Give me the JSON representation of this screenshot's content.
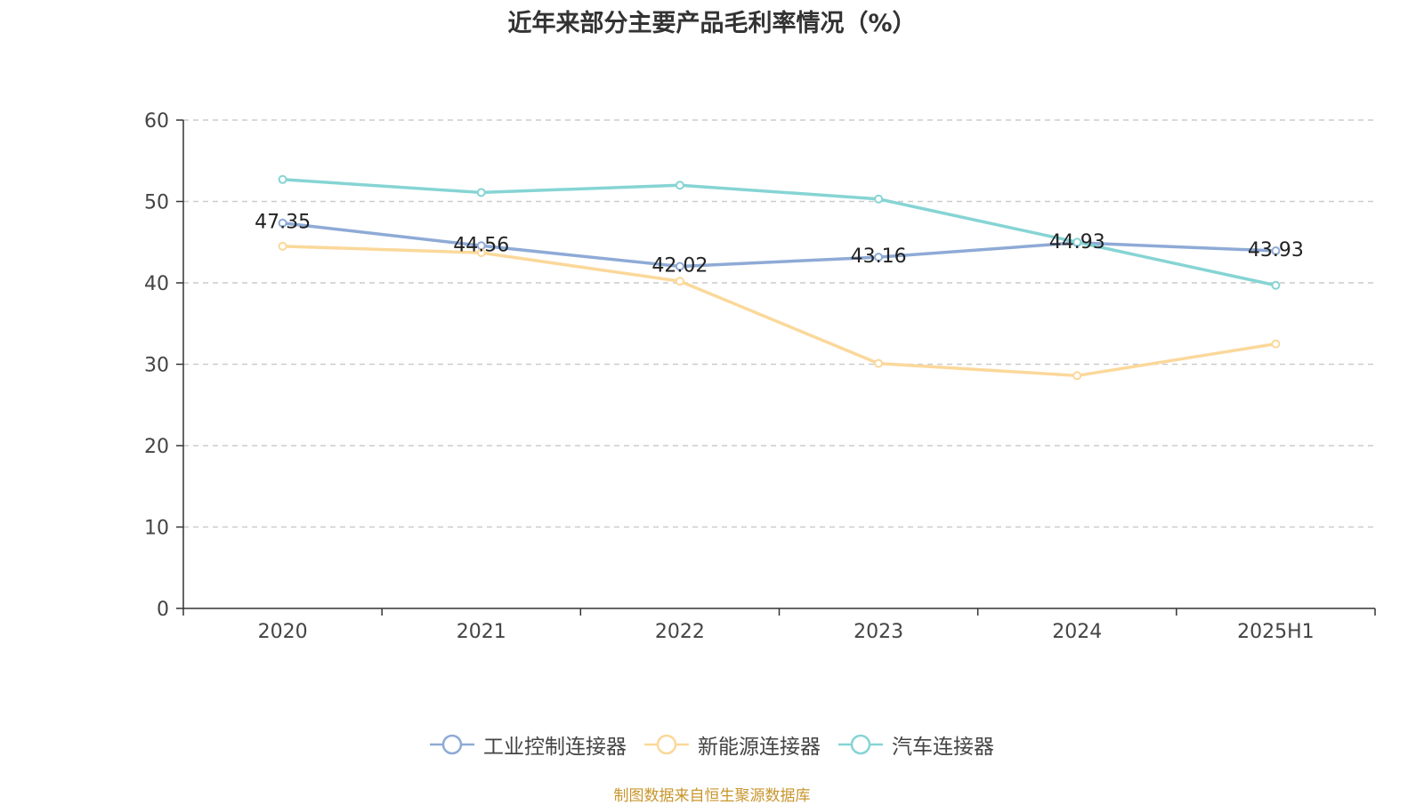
{
  "title": "近年来部分主要产品毛利率情况（%）",
  "source": "制图数据来自恒生聚源数据库",
  "chart_data": {
    "type": "line",
    "categories": [
      "2020",
      "2021",
      "2022",
      "2023",
      "2024",
      "2025H1"
    ],
    "ylim": [
      0,
      60
    ],
    "yticks": [
      0,
      10,
      20,
      30,
      40,
      50,
      60
    ],
    "grid": true,
    "legend_position": "bottom",
    "labeled_series": "工业控制连接器",
    "series": [
      {
        "name": "工业控制连接器",
        "color": "#8eaad6",
        "values": [
          47.35,
          44.56,
          42.02,
          43.16,
          44.93,
          43.93
        ],
        "labels": [
          "47.35",
          "44.56",
          "42.02",
          "43.16",
          "44.93",
          "43.93"
        ]
      },
      {
        "name": "新能源连接器",
        "color": "#fbd89a",
        "values": [
          44.5,
          43.7,
          40.2,
          30.1,
          28.6,
          32.5
        ]
      },
      {
        "name": "汽车连接器",
        "color": "#86d4d4",
        "values": [
          52.7,
          51.1,
          52.0,
          50.3,
          45.0,
          39.7
        ]
      }
    ]
  }
}
